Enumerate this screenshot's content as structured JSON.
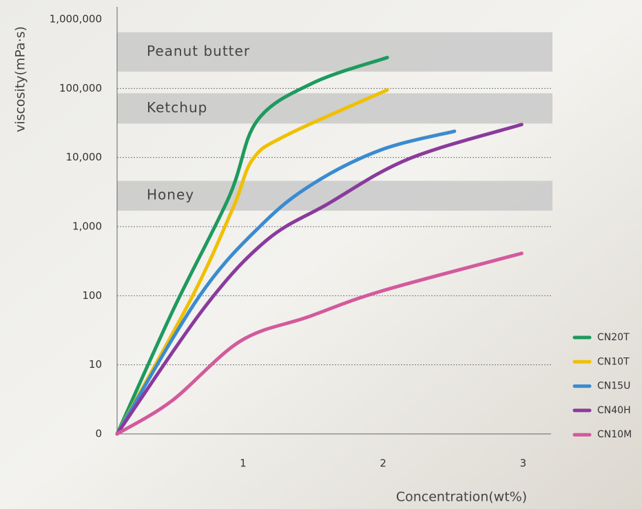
{
  "chart_data": {
    "type": "line",
    "x_label": "Concentration(wt%)",
    "y_label": "viscosity(mPa·s)",
    "y_scale": "symlog",
    "xlim": [
      0.1,
      3.2
    ],
    "xticks": [
      1,
      2,
      3
    ],
    "ylim": [
      0,
      1000000
    ],
    "yticks": [
      {
        "value": 0,
        "label": "0"
      },
      10,
      100,
      {
        "value": 1000,
        "label": "1,000"
      },
      {
        "value": 10000,
        "label": "10,000"
      },
      {
        "value": 100000,
        "label": "100,000"
      },
      {
        "value": 1000000,
        "label": "1,000,000"
      }
    ],
    "grid": true,
    "legend_position": "lower right",
    "bands": [
      {
        "label": "Peanut butter",
        "range": [
          175000,
          650000
        ]
      },
      {
        "label": "Ketchup",
        "range": [
          31000,
          85000
        ]
      },
      {
        "label": "Honey",
        "range": [
          1700,
          4600
        ]
      }
    ],
    "series": [
      {
        "name": "CN20T",
        "color": "#1e9a5e",
        "x": [
          0.1,
          0.5,
          0.9,
          1.1,
          1.5,
          2.03
        ],
        "values": [
          0,
          62,
          2700,
          34000,
          120000,
          280000
        ]
      },
      {
        "name": "CN10T",
        "color": "#f0c000",
        "x": [
          0.1,
          0.64,
          0.93,
          1.07,
          1.31,
          2.03
        ],
        "values": [
          0,
          100,
          1900,
          9500,
          21000,
          95000
        ]
      },
      {
        "name": "CN15U",
        "color": "#3b8bd0",
        "x": [
          0.1,
          0.69,
          1.14,
          1.51,
          1.99,
          2.51
        ],
        "values": [
          0,
          100,
          1100,
          4300,
          13000,
          24000
        ]
      },
      {
        "name": "CN40H",
        "color": "#8a3a9c",
        "x": [
          0.1,
          0.73,
          1.17,
          1.6,
          2.18,
          2.99
        ],
        "values": [
          0,
          70,
          640,
          2100,
          9500,
          30000
        ]
      },
      {
        "name": "CN10M",
        "color": "#d35a9c",
        "x": [
          0.1,
          0.49,
          0.98,
          1.46,
          1.99,
          2.99
        ],
        "values": [
          0,
          3,
          22,
          49,
          117,
          410
        ]
      }
    ]
  }
}
